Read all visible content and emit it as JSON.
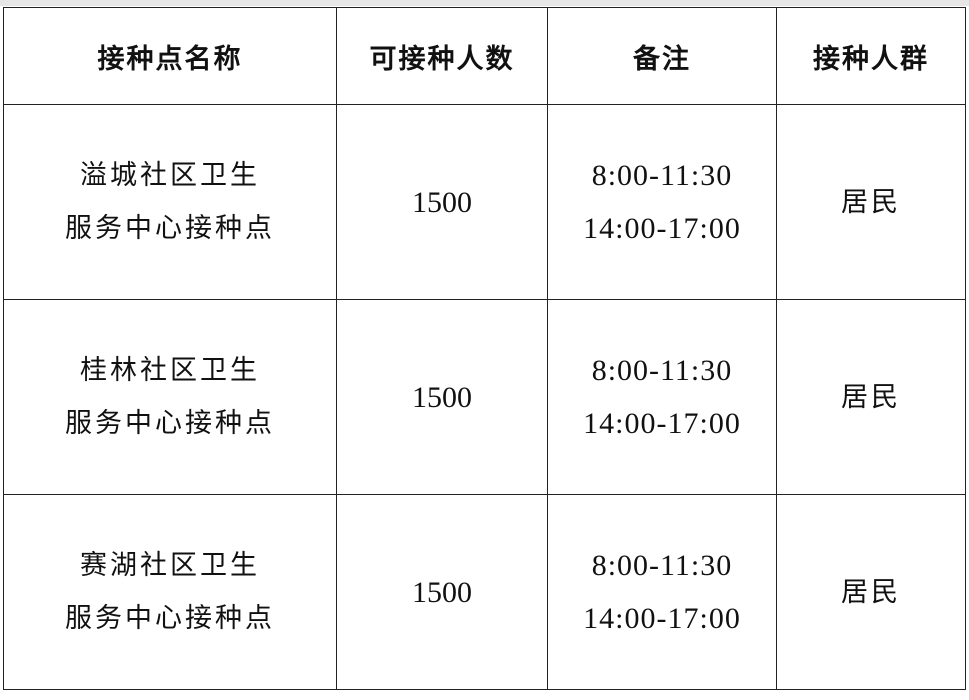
{
  "headers": [
    "接种点名称",
    "可接种人数",
    "备注",
    "接种人群"
  ],
  "rows": [
    {
      "name_line1": "溢城社区卫生",
      "name_line2": "服务中心接种点",
      "count": "1500",
      "time1": "8:00-11:30",
      "time2": "14:00-17:00",
      "group": "居民"
    },
    {
      "name_line1": "桂林社区卫生",
      "name_line2": "服务中心接种点",
      "count": "1500",
      "time1": "8:00-11:30",
      "time2": "14:00-17:00",
      "group": "居民"
    },
    {
      "name_line1": "赛湖社区卫生",
      "name_line2": "服务中心接种点",
      "count": "1500",
      "time1": "8:00-11:30",
      "time2": "14:00-17:00",
      "group": "居民"
    }
  ]
}
